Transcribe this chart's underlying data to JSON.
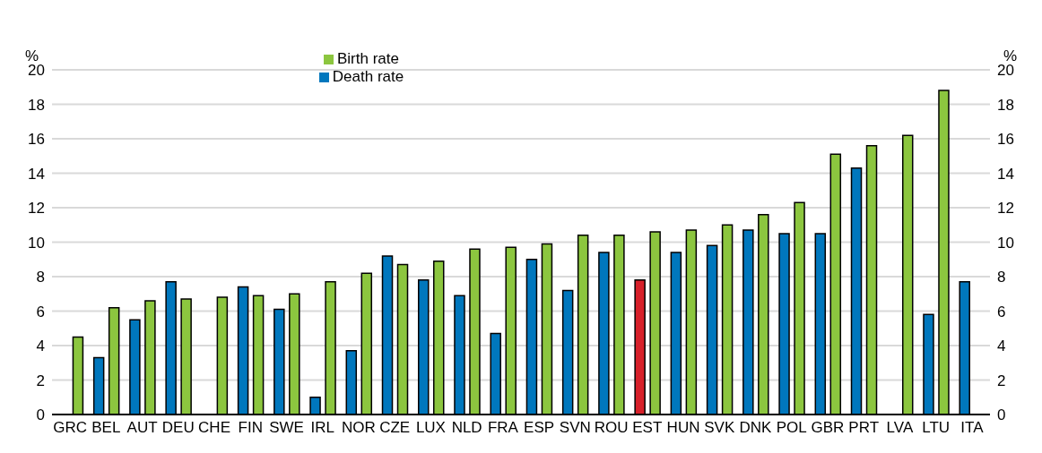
{
  "chart_data": {
    "type": "bar",
    "ylabel": "%",
    "y2label": "%",
    "categories": [
      "GRC",
      "BEL",
      "AUT",
      "DEU",
      "CHE",
      "FIN",
      "SWE",
      "IRL",
      "NOR",
      "CZE",
      "LUX",
      "NLD",
      "FRA",
      "ESP",
      "SVN",
      "ROU",
      "EST",
      "HUN",
      "SVK",
      "DNK",
      "POL",
      "GBR",
      "PRT",
      "LVA",
      "LTU",
      "ITA"
    ],
    "series": [
      {
        "name": "Death rate",
        "color": "#0077bd",
        "colors": [
          "#0077bd",
          "#0077bd",
          "#0077bd",
          "#0077bd",
          "#0077bd",
          "#0077bd",
          "#0077bd",
          "#0077bd",
          "#0077bd",
          "#0077bd",
          "#0077bd",
          "#0077bd",
          "#0077bd",
          "#0077bd",
          "#0077bd",
          "#0077bd",
          "#d7202a",
          "#0077bd",
          "#0077bd",
          "#0077bd",
          "#0077bd",
          "#0077bd",
          "#0077bd",
          "#0077bd",
          "#0077bd",
          "#0077bd"
        ],
        "values": [
          null,
          3.3,
          5.5,
          7.7,
          null,
          7.4,
          6.1,
          1.0,
          3.7,
          9.2,
          7.8,
          6.9,
          4.7,
          9.0,
          7.2,
          9.4,
          7.8,
          9.4,
          9.8,
          10.7,
          10.5,
          10.5,
          14.3,
          null,
          5.8,
          7.7
        ]
      },
      {
        "name": "Birth rate",
        "color": "#8cc63f",
        "values": [
          4.5,
          6.2,
          6.6,
          6.7,
          6.8,
          6.9,
          7.0,
          7.7,
          8.2,
          8.7,
          8.9,
          9.6,
          9.7,
          9.9,
          10.4,
          10.4,
          10.6,
          10.7,
          11.0,
          11.6,
          12.3,
          15.1,
          15.6,
          16.2,
          18.8,
          null
        ]
      }
    ],
    "ylim": [
      0,
      20
    ],
    "yticks": [
      0,
      2,
      4,
      6,
      8,
      10,
      12,
      14,
      16,
      18,
      20
    ],
    "y2lim": [
      0,
      20
    ],
    "y2ticks": [
      0,
      2,
      4,
      6,
      8,
      10,
      12,
      14,
      16,
      18,
      20
    ],
    "grid": "y",
    "legend": "top"
  }
}
